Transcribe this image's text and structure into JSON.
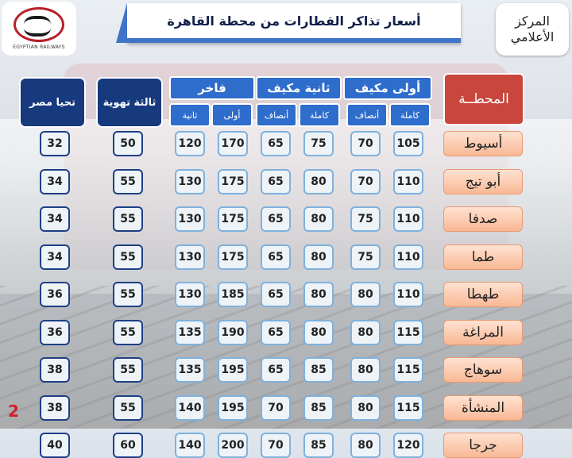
{
  "title": "أسعار تذاكر القطارات من محطة القاهرة",
  "logo_text": "EGYPTIAN RAILWAYS",
  "media_badge": "المركز الأعلامي",
  "headers": {
    "tahya_misr": "تحيا مصر",
    "third_ventilated": "ثالثة تهوية",
    "fakher": "فاخر",
    "second_ac": "ثانية مكيف",
    "first_ac": "أولى مكيف",
    "station": "المحطــة"
  },
  "subheaders": {
    "fakher_second": "ثانية",
    "fakher_first": "أولى",
    "second_half": "أنصاف",
    "second_full": "كاملة",
    "first_half": "أنصاف",
    "first_full": "كاملة"
  },
  "rows": [
    {
      "station": "أسيوط",
      "tahya": "32",
      "third": "50",
      "fakher_2": "120",
      "fakher_1": "170",
      "s_half": "65",
      "s_full": "75",
      "f_half": "70",
      "f_full": "105"
    },
    {
      "station": "أبو تيج",
      "tahya": "34",
      "third": "55",
      "fakher_2": "130",
      "fakher_1": "175",
      "s_half": "65",
      "s_full": "80",
      "f_half": "70",
      "f_full": "110"
    },
    {
      "station": "صدفا",
      "tahya": "34",
      "third": "55",
      "fakher_2": "130",
      "fakher_1": "175",
      "s_half": "65",
      "s_full": "80",
      "f_half": "75",
      "f_full": "110"
    },
    {
      "station": "طما",
      "tahya": "34",
      "third": "55",
      "fakher_2": "130",
      "fakher_1": "175",
      "s_half": "65",
      "s_full": "80",
      "f_half": "75",
      "f_full": "110"
    },
    {
      "station": "طهطا",
      "tahya": "36",
      "third": "55",
      "fakher_2": "130",
      "fakher_1": "185",
      "s_half": "65",
      "s_full": "80",
      "f_half": "80",
      "f_full": "110"
    },
    {
      "station": "المراغة",
      "tahya": "36",
      "third": "55",
      "fakher_2": "135",
      "fakher_1": "190",
      "s_half": "65",
      "s_full": "80",
      "f_half": "80",
      "f_full": "115"
    },
    {
      "station": "سوهاج",
      "tahya": "38",
      "third": "55",
      "fakher_2": "135",
      "fakher_1": "195",
      "s_half": "65",
      "s_full": "85",
      "f_half": "80",
      "f_full": "115"
    },
    {
      "station": "المنشأة",
      "tahya": "38",
      "third": "55",
      "fakher_2": "140",
      "fakher_1": "195",
      "s_half": "70",
      "s_full": "85",
      "f_half": "80",
      "f_full": "115"
    },
    {
      "station": "جرجا",
      "tahya": "40",
      "third": "60",
      "fakher_2": "140",
      "fakher_1": "200",
      "s_half": "70",
      "s_full": "85",
      "f_half": "80",
      "f_full": "120"
    }
  ],
  "page_number": "2"
}
